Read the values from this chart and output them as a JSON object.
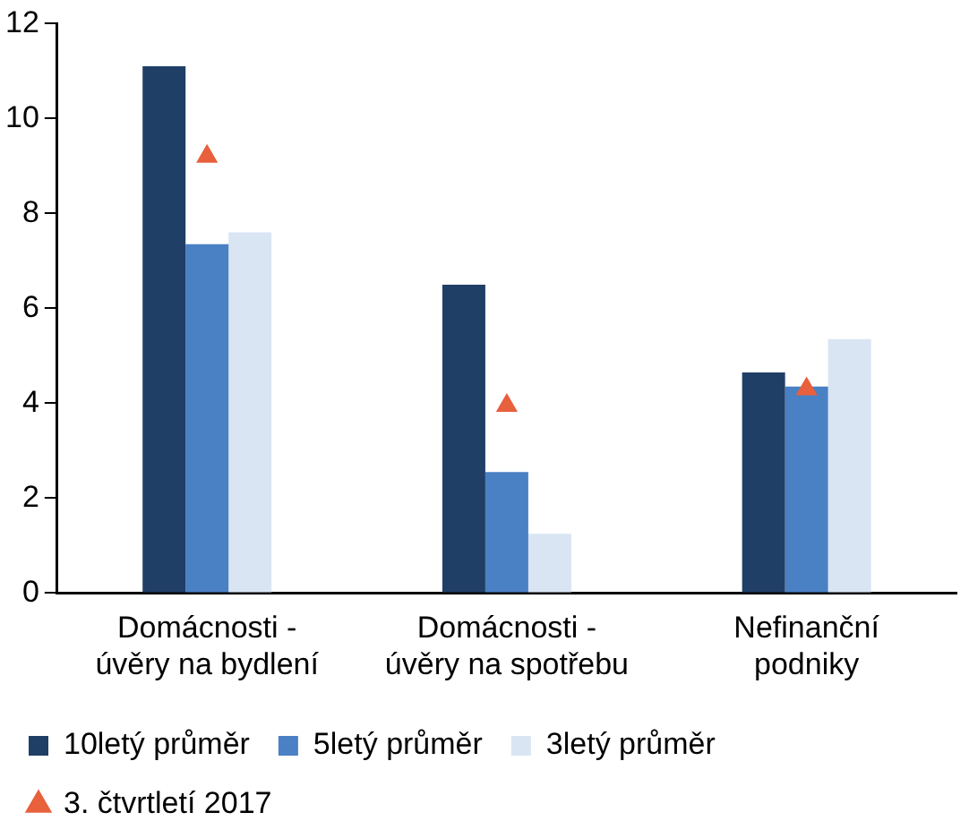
{
  "chart_data": {
    "type": "bar",
    "categories": [
      [
        "Domácnosti -",
        "úvěry na bydlení"
      ],
      [
        "Domácnosti -",
        "úvěry na spotřebu"
      ],
      [
        "Nefinanční",
        "podniky"
      ]
    ],
    "series": [
      {
        "name": "10letý průměr",
        "color": "#203f66",
        "values": [
          11.1,
          6.5,
          4.65
        ]
      },
      {
        "name": "5letý průměr",
        "color": "#4a80c4",
        "values": [
          7.35,
          2.55,
          4.35
        ]
      },
      {
        "name": "3letý průměr",
        "color": "#d9e5f3",
        "values": [
          7.6,
          1.25,
          5.35
        ]
      },
      {
        "name": "3. čtvrtletí 2017",
        "type": "scatter",
        "marker": "triangle",
        "color": "#e8603c",
        "values": [
          9.2,
          3.95,
          4.3
        ]
      }
    ],
    "ylim": [
      0,
      12
    ],
    "yticks": [
      0,
      2,
      4,
      6,
      8,
      10,
      12
    ],
    "grid": false,
    "legend": "bottom"
  }
}
